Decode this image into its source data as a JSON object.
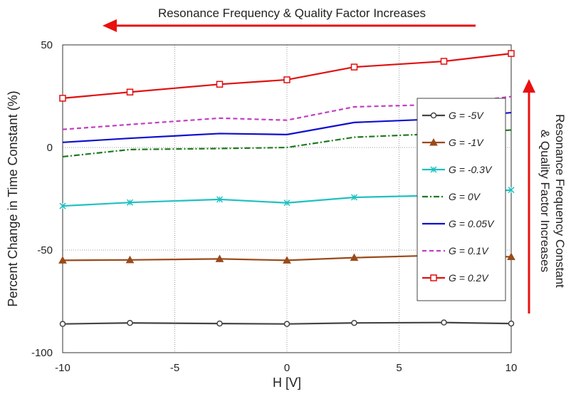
{
  "chart_data": {
    "type": "line",
    "title": "",
    "xlabel": "H [V]",
    "ylabel": "Percent Change in Time Constant (%)",
    "x": [
      -10,
      -7,
      -3,
      0,
      3,
      7,
      10
    ],
    "xlim": [
      -10,
      10
    ],
    "ylim": [
      -100,
      50
    ],
    "xticks": [
      "-10",
      "-5",
      "0",
      "5",
      "10"
    ],
    "yticks": [
      "50",
      "0",
      "-50",
      "-100"
    ],
    "grid": true,
    "legend_position": "right",
    "series": [
      {
        "name": "G = -5V",
        "color": "#444444",
        "marker": "circle",
        "dash": "solid",
        "values": [
          -86,
          -85.5,
          -85.8,
          -86,
          -85.5,
          -85.3,
          -85.8
        ]
      },
      {
        "name": "G = -1V",
        "color": "#9a4a1a",
        "marker": "triangle",
        "dash": "solid",
        "values": [
          -55,
          -54.8,
          -54.3,
          -55,
          -53.7,
          -52.5,
          -53.3
        ]
      },
      {
        "name": "G = -0.3V",
        "color": "#20c0c0",
        "marker": "x",
        "dash": "solid",
        "values": [
          -28.5,
          -26.8,
          -25.3,
          -27,
          -24.3,
          -23.3,
          -20.7
        ]
      },
      {
        "name": "G = 0V",
        "color": "#1e7a1e",
        "marker": "none",
        "dash": "dashdot",
        "values": [
          -4.5,
          -1,
          -0.5,
          0,
          5,
          6.8,
          8.5
        ]
      },
      {
        "name": "G = 0.05V",
        "color": "#1010d0",
        "marker": "none",
        "dash": "solid",
        "values": [
          2.5,
          4.5,
          6.8,
          6.3,
          12.2,
          14,
          17
        ]
      },
      {
        "name": "G = 0.1V",
        "color": "#c040c0",
        "marker": "none",
        "dash": "dashed",
        "values": [
          8.8,
          11.2,
          14.3,
          13.3,
          19.8,
          21,
          24.8
        ]
      },
      {
        "name": "G = 0.2V",
        "color": "#e01010",
        "marker": "square",
        "dash": "solid",
        "values": [
          24,
          27,
          30.8,
          33,
          39.2,
          42,
          45.8
        ]
      }
    ],
    "annotations": {
      "top": "Resonance Frequency & Quality Factor Increases",
      "right_line1": "Resonance Frequency Constant",
      "right_line2": "& Quality Factor Increases",
      "arrow_color": "#e81010"
    }
  }
}
